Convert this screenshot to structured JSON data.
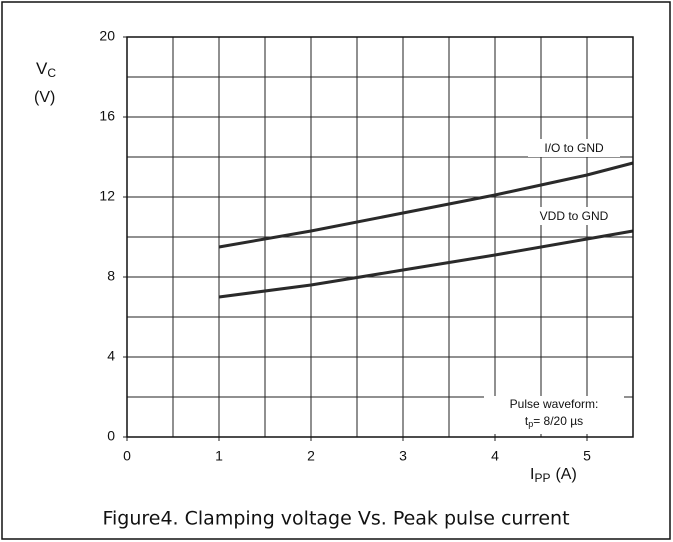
{
  "chart_data": {
    "type": "line",
    "caption": "Figure4. Clamping voltage Vs. Peak pulse current",
    "y_label": {
      "base": "V",
      "sub": "C",
      "unit": "(V)"
    },
    "x_label": {
      "base": "I",
      "sub": "PP",
      "unit": "(A)"
    },
    "annotation": {
      "line1": "Pulse waveform:",
      "line2": {
        "base": "t",
        "sub": "p",
        "rest": "= 8/20 µs"
      }
    },
    "xlim": [
      0,
      5.5
    ],
    "ylim": [
      0,
      20
    ],
    "xticks": [
      0,
      1,
      2,
      3,
      4,
      5
    ],
    "yticks": [
      0,
      4,
      8,
      12,
      16,
      20
    ],
    "xgrid": [
      0,
      0.5,
      1,
      1.5,
      2,
      2.5,
      3,
      3.5,
      4,
      4.5,
      5,
      5.5
    ],
    "ygrid": [
      0,
      2,
      4,
      6,
      8,
      10,
      12,
      14,
      16,
      18,
      20
    ],
    "grid": true,
    "x": [
      1,
      2,
      3,
      4,
      5,
      5.5
    ],
    "series": [
      {
        "name": "I/O to GND",
        "color": "#2a2a2a",
        "values": [
          9.5,
          10.3,
          11.2,
          12.1,
          13.1,
          13.7
        ]
      },
      {
        "name": "VDD to GND",
        "color": "#2a2a2a",
        "values": [
          7.0,
          7.6,
          8.35,
          9.1,
          9.9,
          10.3
        ]
      }
    ]
  }
}
